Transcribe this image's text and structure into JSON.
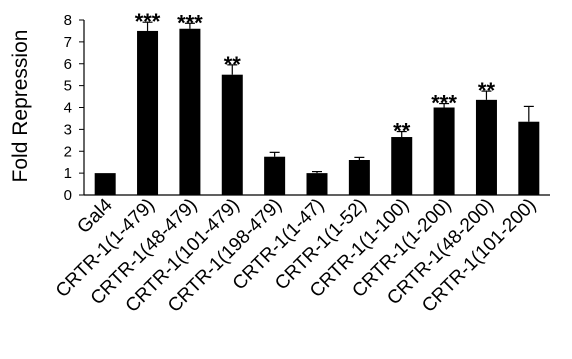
{
  "chart_data": {
    "type": "bar",
    "title": "",
    "xlabel": "",
    "ylabel": "Fold Repression",
    "ylim": [
      0,
      8
    ],
    "yticks": [
      0,
      1,
      2,
      3,
      4,
      5,
      6,
      7,
      8
    ],
    "grid": false,
    "legend": "none",
    "bar_color": "#000000",
    "categories": [
      "Gal4",
      "CRTR-1(1-479)",
      "CRTR-1(48-479)",
      "CRTR-1(101-479)",
      "CRTR-1(198-479)",
      "CRTR-1(1-47)",
      "CRTR-1(1-52)",
      "CRTR-1(1-100)",
      "CRTR-1(1-200)",
      "CRTR-1(48-200)",
      "CRTR-1(101-200)"
    ],
    "values": [
      1.0,
      7.5,
      7.6,
      5.5,
      1.75,
      1.0,
      1.6,
      2.65,
      4.0,
      4.35,
      3.35
    ],
    "errors": [
      0.0,
      0.4,
      0.25,
      0.45,
      0.2,
      0.07,
      0.12,
      0.25,
      0.18,
      0.4,
      0.7
    ],
    "significance": [
      "",
      "***",
      "***",
      "**",
      "",
      "",
      "",
      "**",
      "***",
      "**",
      ""
    ]
  }
}
